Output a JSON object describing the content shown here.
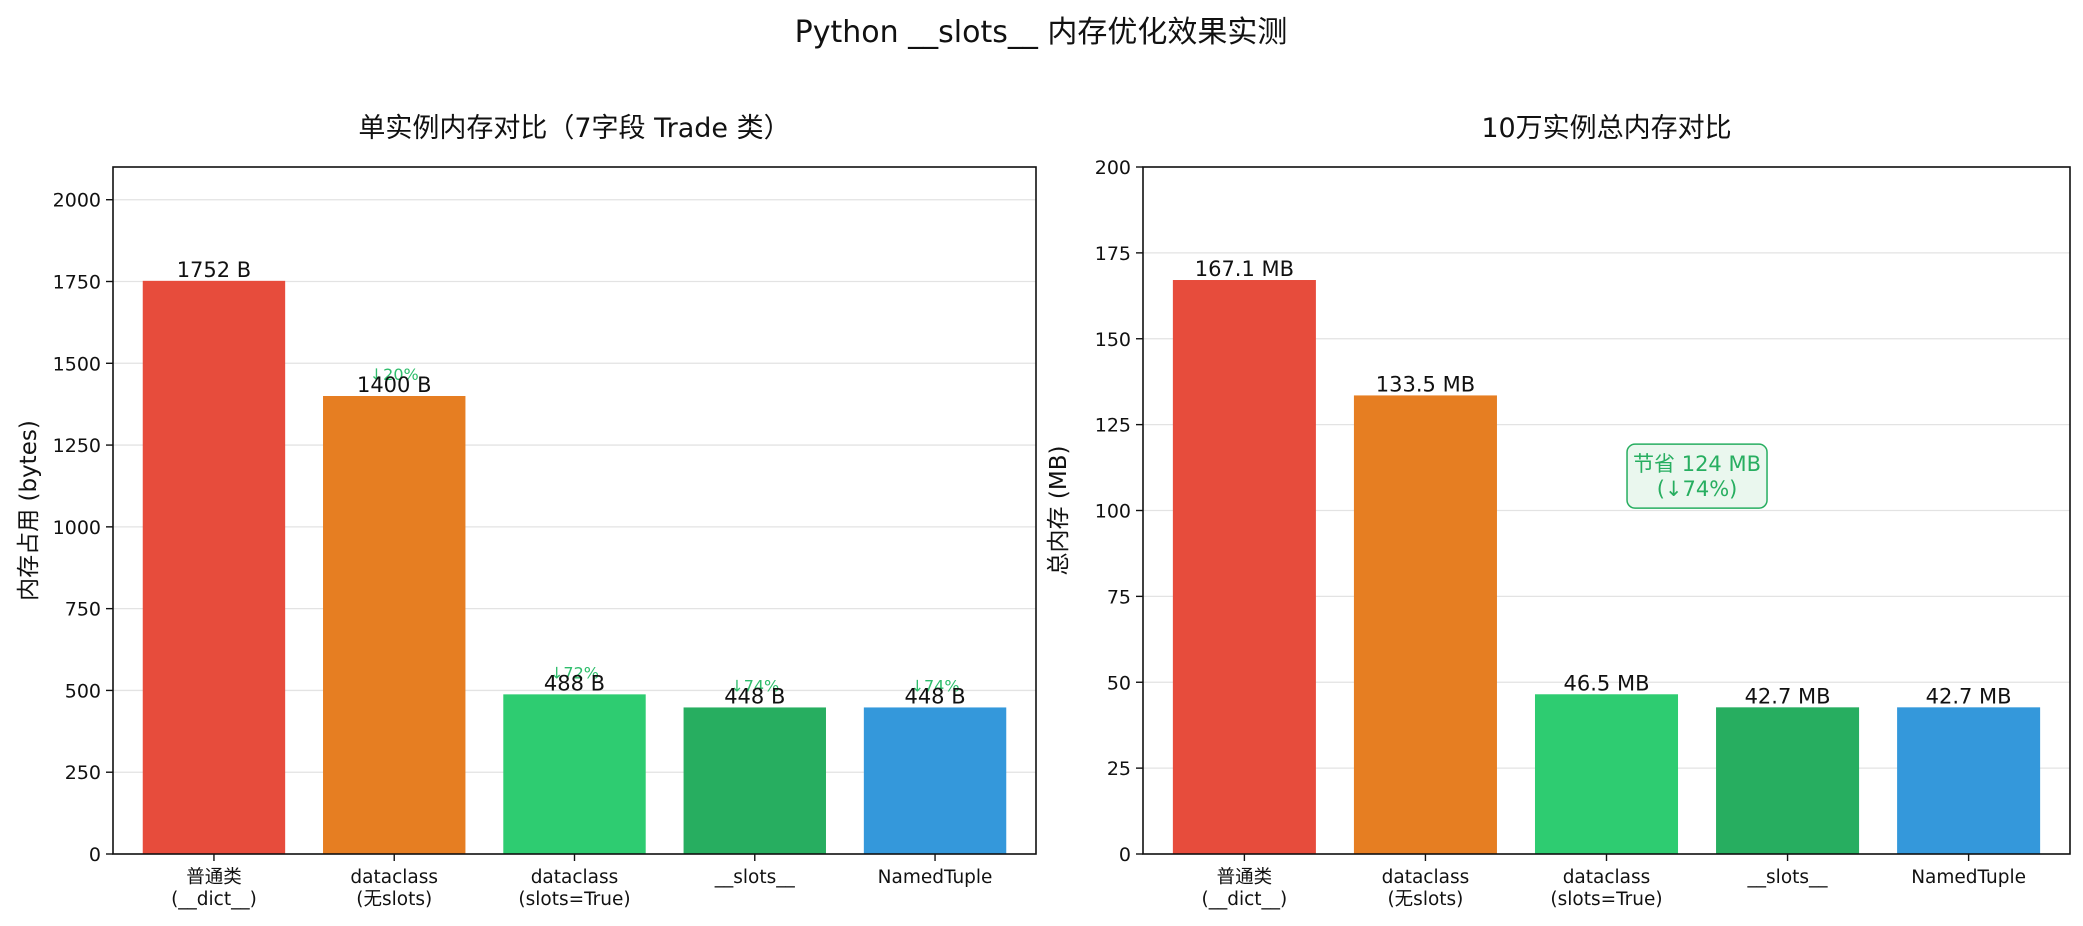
{
  "figure": {
    "title": "Python __slots__ 内存优化效果实测"
  },
  "chart_data": [
    {
      "type": "bar",
      "title": "单实例内存对比（7字段 Trade 类）",
      "xlabel": "",
      "ylabel": "内存占用 (bytes)",
      "ylim": [
        0,
        2100
      ],
      "yticks": [
        0,
        250,
        500,
        750,
        1000,
        1250,
        1500,
        1750,
        2000
      ],
      "grid": "horizontal",
      "categories": [
        "普通类\n(__dict__)",
        "dataclass\n(无slots)",
        "dataclass\n(slots=True)",
        "__slots__",
        "NamedTuple"
      ],
      "values": [
        1752,
        1400,
        488,
        448,
        448
      ],
      "value_labels": [
        "1752 B",
        "1400 B",
        "488 B",
        "448 B",
        "448 B"
      ],
      "reduction_labels": [
        "",
        "↓20%",
        "↓72%",
        "↓74%",
        "↓74%"
      ],
      "colors": [
        "#e74c3c",
        "#e67e22",
        "#2ecc71",
        "#27ae60",
        "#3498db"
      ]
    },
    {
      "type": "bar",
      "title": "10万实例总内存对比",
      "xlabel": "",
      "ylabel": "总内存 (MB)",
      "ylim": [
        0,
        200
      ],
      "yticks": [
        0,
        25,
        50,
        75,
        100,
        125,
        150,
        175,
        200
      ],
      "grid": "horizontal",
      "categories": [
        "普通类\n(__dict__)",
        "dataclass\n(无slots)",
        "dataclass\n(slots=True)",
        "__slots__",
        "NamedTuple"
      ],
      "values": [
        167.1,
        133.5,
        46.5,
        42.7,
        42.7
      ],
      "value_labels": [
        "167.1 MB",
        "133.5 MB",
        "46.5 MB",
        "42.7 MB",
        "42.7 MB"
      ],
      "colors": [
        "#e74c3c",
        "#e67e22",
        "#2ecc71",
        "#27ae60",
        "#3498db"
      ],
      "annotation": {
        "lines": [
          "节省 124 MB",
          "(↓74%)"
        ],
        "x_category_position": 2.5,
        "y_value": 110,
        "text_color": "#27ae60",
        "box_fill": "#eaf7ee",
        "box_edge": "#27ae60"
      }
    }
  ]
}
